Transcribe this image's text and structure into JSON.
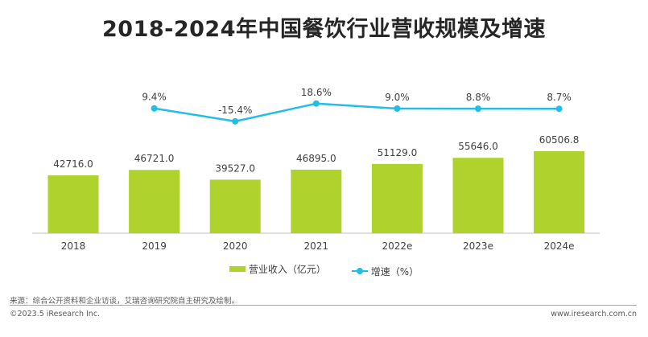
{
  "title": "2018-2024年中国餐饮行业营收规模及增速",
  "chart_data": {
    "type": "bar+line",
    "title": "2018-2024年中国餐饮行业营收规模及增速",
    "categories": [
      "2018",
      "2019",
      "2020",
      "2021",
      "2022e",
      "2023e",
      "2024e"
    ],
    "series": [
      {
        "name": "营业收入（亿元）",
        "type": "bar",
        "color": "#b0d22d",
        "values": [
          42716.0,
          46721.0,
          39527.0,
          46895.0,
          51129.0,
          55646.0,
          60506.8
        ],
        "labels": [
          "42716.0",
          "46721.0",
          "39527.0",
          "46895.0",
          "51129.0",
          "55646.0",
          "60506.8"
        ]
      },
      {
        "name": "增速（%）",
        "type": "line",
        "color": "#23bde8",
        "values": [
          null,
          9.4,
          -15.4,
          18.6,
          9.0,
          8.8,
          8.7
        ],
        "labels": [
          "",
          "9.4%",
          "-15.4%",
          "18.6%",
          "9.0%",
          "8.8%",
          "8.7%"
        ]
      }
    ],
    "legend_position": "bottom",
    "grid": false
  },
  "legend": {
    "bar": "营业收入（亿元）",
    "line": "增速（%）"
  },
  "footer": {
    "source": "来源：综合公开资料和企业访谈，艾瑞咨询研究院自主研究及绘制。",
    "copyright": "©2023.5 iResearch Inc.",
    "url": "www.iresearch.com.cn"
  }
}
